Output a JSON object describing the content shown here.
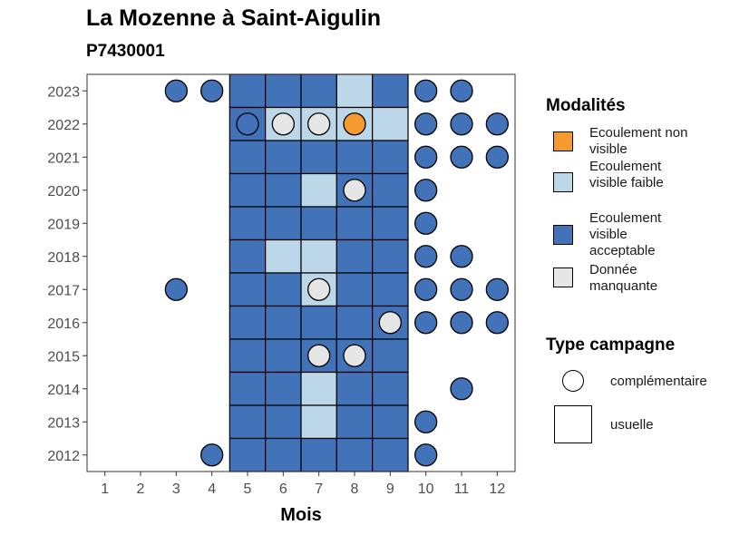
{
  "title": "La Mozenne à Saint-Aigulin",
  "subtitle": "P7430001",
  "chart_data": {
    "type": "heatmap",
    "xlabel": "Mois",
    "ylabel": "",
    "x_ticks": [
      "1",
      "2",
      "3",
      "4",
      "5",
      "6",
      "7",
      "8",
      "9",
      "10",
      "11",
      "12"
    ],
    "y_ticks": [
      "2012",
      "2013",
      "2014",
      "2015",
      "2016",
      "2017",
      "2018",
      "2019",
      "2020",
      "2021",
      "2022",
      "2023"
    ],
    "xlim": [
      0.5,
      12.5
    ],
    "ylim": [
      2011.5,
      2023.5
    ],
    "grid": false,
    "legend_placement": "right",
    "colors": {
      "Ecoulement non visible": "#f59a2f",
      "Ecoulement visible faible": "#bcd7e8",
      "Ecoulement visible acceptable": "#4272b8",
      "Donnée manquante": "#e6e6e6"
    },
    "tiles_usuelle": [
      {
        "year": 2023,
        "month": 5,
        "modalite": "Ecoulement visible acceptable"
      },
      {
        "year": 2023,
        "month": 6,
        "modalite": "Ecoulement visible acceptable"
      },
      {
        "year": 2023,
        "month": 7,
        "modalite": "Ecoulement visible acceptable"
      },
      {
        "year": 2023,
        "month": 8,
        "modalite": "Ecoulement visible faible"
      },
      {
        "year": 2023,
        "month": 9,
        "modalite": "Ecoulement visible acceptable"
      },
      {
        "year": 2022,
        "month": 5,
        "modalite": "Ecoulement visible acceptable"
      },
      {
        "year": 2022,
        "month": 6,
        "modalite": "Ecoulement visible faible"
      },
      {
        "year": 2022,
        "month": 7,
        "modalite": "Ecoulement visible faible"
      },
      {
        "year": 2022,
        "month": 8,
        "modalite": "Ecoulement visible faible"
      },
      {
        "year": 2022,
        "month": 9,
        "modalite": "Ecoulement visible faible"
      },
      {
        "year": 2021,
        "month": 5,
        "modalite": "Ecoulement visible acceptable"
      },
      {
        "year": 2021,
        "month": 6,
        "modalite": "Ecoulement visible acceptable"
      },
      {
        "year": 2021,
        "month": 7,
        "modalite": "Ecoulement visible acceptable"
      },
      {
        "year": 2021,
        "month": 8,
        "modalite": "Ecoulement visible acceptable"
      },
      {
        "year": 2021,
        "month": 9,
        "modalite": "Ecoulement visible acceptable"
      },
      {
        "year": 2020,
        "month": 5,
        "modalite": "Ecoulement visible acceptable"
      },
      {
        "year": 2020,
        "month": 6,
        "modalite": "Ecoulement visible acceptable"
      },
      {
        "year": 2020,
        "month": 7,
        "modalite": "Ecoulement visible faible"
      },
      {
        "year": 2020,
        "month": 8,
        "modalite": "Ecoulement visible acceptable"
      },
      {
        "year": 2020,
        "month": 9,
        "modalite": "Ecoulement visible acceptable"
      },
      {
        "year": 2019,
        "month": 5,
        "modalite": "Ecoulement visible acceptable"
      },
      {
        "year": 2019,
        "month": 6,
        "modalite": "Ecoulement visible acceptable"
      },
      {
        "year": 2019,
        "month": 7,
        "modalite": "Ecoulement visible acceptable"
      },
      {
        "year": 2019,
        "month": 8,
        "modalite": "Ecoulement visible acceptable"
      },
      {
        "year": 2019,
        "month": 9,
        "modalite": "Ecoulement visible acceptable"
      },
      {
        "year": 2018,
        "month": 5,
        "modalite": "Ecoulement visible acceptable"
      },
      {
        "year": 2018,
        "month": 6,
        "modalite": "Ecoulement visible faible"
      },
      {
        "year": 2018,
        "month": 7,
        "modalite": "Ecoulement visible faible"
      },
      {
        "year": 2018,
        "month": 8,
        "modalite": "Ecoulement visible acceptable"
      },
      {
        "year": 2018,
        "month": 9,
        "modalite": "Ecoulement visible acceptable"
      },
      {
        "year": 2017,
        "month": 5,
        "modalite": "Ecoulement visible acceptable"
      },
      {
        "year": 2017,
        "month": 6,
        "modalite": "Ecoulement visible acceptable"
      },
      {
        "year": 2017,
        "month": 7,
        "modalite": "Ecoulement visible faible"
      },
      {
        "year": 2017,
        "month": 8,
        "modalite": "Ecoulement visible acceptable"
      },
      {
        "year": 2017,
        "month": 9,
        "modalite": "Ecoulement visible acceptable"
      },
      {
        "year": 2016,
        "month": 5,
        "modalite": "Ecoulement visible acceptable"
      },
      {
        "year": 2016,
        "month": 6,
        "modalite": "Ecoulement visible acceptable"
      },
      {
        "year": 2016,
        "month": 7,
        "modalite": "Ecoulement visible acceptable"
      },
      {
        "year": 2016,
        "month": 8,
        "modalite": "Ecoulement visible acceptable"
      },
      {
        "year": 2016,
        "month": 9,
        "modalite": "Ecoulement visible acceptable"
      },
      {
        "year": 2015,
        "month": 5,
        "modalite": "Ecoulement visible acceptable"
      },
      {
        "year": 2015,
        "month": 6,
        "modalite": "Ecoulement visible acceptable"
      },
      {
        "year": 2015,
        "month": 7,
        "modalite": "Ecoulement visible acceptable"
      },
      {
        "year": 2015,
        "month": 8,
        "modalite": "Ecoulement visible acceptable"
      },
      {
        "year": 2015,
        "month": 9,
        "modalite": "Ecoulement visible acceptable"
      },
      {
        "year": 2014,
        "month": 5,
        "modalite": "Ecoulement visible acceptable"
      },
      {
        "year": 2014,
        "month": 6,
        "modalite": "Ecoulement visible acceptable"
      },
      {
        "year": 2014,
        "month": 7,
        "modalite": "Ecoulement visible faible"
      },
      {
        "year": 2014,
        "month": 8,
        "modalite": "Ecoulement visible acceptable"
      },
      {
        "year": 2014,
        "month": 9,
        "modalite": "Ecoulement visible acceptable"
      },
      {
        "year": 2013,
        "month": 5,
        "modalite": "Ecoulement visible acceptable"
      },
      {
        "year": 2013,
        "month": 6,
        "modalite": "Ecoulement visible acceptable"
      },
      {
        "year": 2013,
        "month": 7,
        "modalite": "Ecoulement visible faible"
      },
      {
        "year": 2013,
        "month": 8,
        "modalite": "Ecoulement visible acceptable"
      },
      {
        "year": 2013,
        "month": 9,
        "modalite": "Ecoulement visible acceptable"
      },
      {
        "year": 2012,
        "month": 5,
        "modalite": "Ecoulement visible acceptable"
      },
      {
        "year": 2012,
        "month": 6,
        "modalite": "Ecoulement visible acceptable"
      },
      {
        "year": 2012,
        "month": 7,
        "modalite": "Ecoulement visible acceptable"
      },
      {
        "year": 2012,
        "month": 8,
        "modalite": "Ecoulement visible acceptable"
      },
      {
        "year": 2012,
        "month": 9,
        "modalite": "Ecoulement visible acceptable"
      }
    ],
    "points_complementaire": [
      {
        "year": 2023,
        "month": 3,
        "modalite": "Ecoulement visible acceptable"
      },
      {
        "year": 2023,
        "month": 4,
        "modalite": "Ecoulement visible acceptable"
      },
      {
        "year": 2023,
        "month": 10,
        "modalite": "Ecoulement visible acceptable"
      },
      {
        "year": 2023,
        "month": 11,
        "modalite": "Ecoulement visible acceptable"
      },
      {
        "year": 2022,
        "month": 5,
        "modalite": "Ecoulement visible acceptable"
      },
      {
        "year": 2022,
        "month": 6,
        "modalite": "Donnée manquante"
      },
      {
        "year": 2022,
        "month": 7,
        "modalite": "Donnée manquante"
      },
      {
        "year": 2022,
        "month": 8,
        "modalite": "Ecoulement non visible"
      },
      {
        "year": 2022,
        "month": 10,
        "modalite": "Ecoulement visible acceptable"
      },
      {
        "year": 2022,
        "month": 11,
        "modalite": "Ecoulement visible acceptable"
      },
      {
        "year": 2022,
        "month": 12,
        "modalite": "Ecoulement visible acceptable"
      },
      {
        "year": 2021,
        "month": 10,
        "modalite": "Ecoulement visible acceptable"
      },
      {
        "year": 2021,
        "month": 11,
        "modalite": "Ecoulement visible acceptable"
      },
      {
        "year": 2021,
        "month": 12,
        "modalite": "Ecoulement visible acceptable"
      },
      {
        "year": 2020,
        "month": 8,
        "modalite": "Donnée manquante"
      },
      {
        "year": 2020,
        "month": 10,
        "modalite": "Ecoulement visible acceptable"
      },
      {
        "year": 2019,
        "month": 10,
        "modalite": "Ecoulement visible acceptable"
      },
      {
        "year": 2018,
        "month": 10,
        "modalite": "Ecoulement visible acceptable"
      },
      {
        "year": 2018,
        "month": 11,
        "modalite": "Ecoulement visible acceptable"
      },
      {
        "year": 2017,
        "month": 3,
        "modalite": "Ecoulement visible acceptable"
      },
      {
        "year": 2017,
        "month": 7,
        "modalite": "Donnée manquante"
      },
      {
        "year": 2017,
        "month": 10,
        "modalite": "Ecoulement visible acceptable"
      },
      {
        "year": 2017,
        "month": 11,
        "modalite": "Ecoulement visible acceptable"
      },
      {
        "year": 2017,
        "month": 12,
        "modalite": "Ecoulement visible acceptable"
      },
      {
        "year": 2016,
        "month": 9,
        "modalite": "Donnée manquante"
      },
      {
        "year": 2016,
        "month": 10,
        "modalite": "Ecoulement visible acceptable"
      },
      {
        "year": 2016,
        "month": 11,
        "modalite": "Ecoulement visible acceptable"
      },
      {
        "year": 2016,
        "month": 12,
        "modalite": "Ecoulement visible acceptable"
      },
      {
        "year": 2015,
        "month": 7,
        "modalite": "Donnée manquante"
      },
      {
        "year": 2015,
        "month": 8,
        "modalite": "Donnée manquante"
      },
      {
        "year": 2014,
        "month": 11,
        "modalite": "Ecoulement visible acceptable"
      },
      {
        "year": 2013,
        "month": 10,
        "modalite": "Ecoulement visible acceptable"
      },
      {
        "year": 2012,
        "month": 4,
        "modalite": "Ecoulement visible acceptable"
      },
      {
        "year": 2012,
        "month": 10,
        "modalite": "Ecoulement visible acceptable"
      }
    ]
  },
  "legend": {
    "modalites_title": "Modalités",
    "modalites": [
      {
        "label": "Ecoulement non visible",
        "color": "#f59a2f"
      },
      {
        "label": "Ecoulement visible faible",
        "color": "#bcd7e8"
      },
      {
        "label": "Ecoulement visible acceptable",
        "color": "#4272b8"
      },
      {
        "label": "Donnée manquante",
        "color": "#e6e6e6"
      }
    ],
    "type_title": "Type campagne",
    "types": [
      {
        "label": "complémentaire"
      },
      {
        "label": "usuelle"
      }
    ]
  }
}
